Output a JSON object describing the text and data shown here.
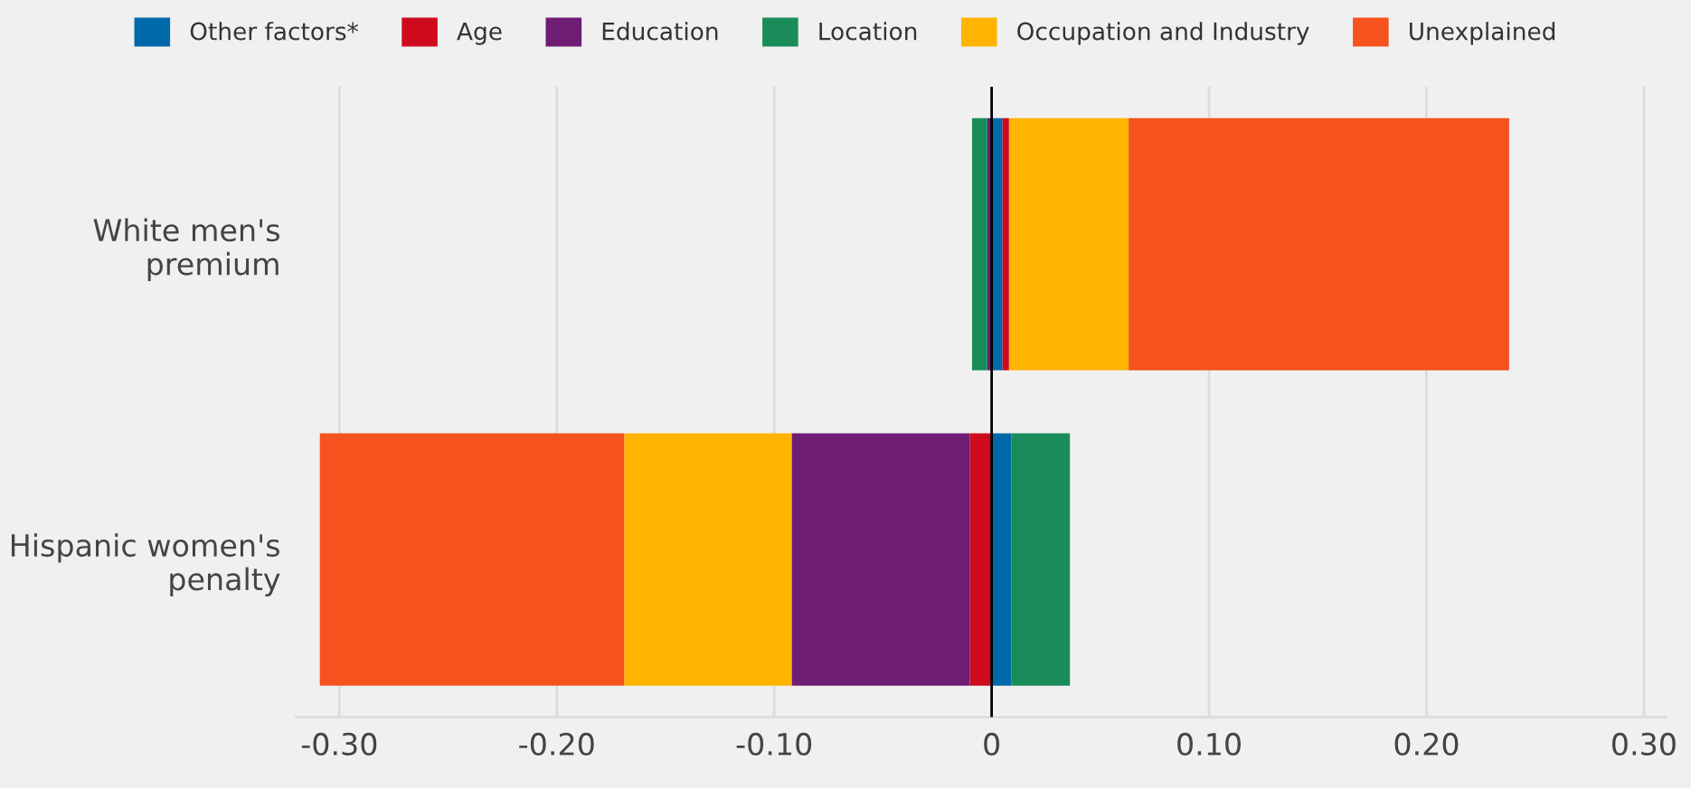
{
  "chart_data": {
    "type": "bar",
    "orientation": "horizontal",
    "stacked": true,
    "categories": [
      "White men's\npremium",
      "Hispanic women's\npenalty"
    ],
    "series": [
      {
        "name": "Other factors*",
        "color": "#0069aa",
        "values": [
          0.005,
          0.009
        ]
      },
      {
        "name": "Age",
        "color": "#cf0a1d",
        "values": [
          0.003,
          -0.01
        ]
      },
      {
        "name": "Education",
        "color": "#6e1c74",
        "values": [
          -0.002,
          -0.082
        ]
      },
      {
        "name": "Location",
        "color": "#198c5a",
        "values": [
          -0.007,
          0.027
        ]
      },
      {
        "name": "Occupation and Industry",
        "color": "#ffb400",
        "values": [
          0.055,
          -0.077
        ]
      },
      {
        "name": "Unexplained",
        "color": "#f5521e",
        "values": [
          0.175,
          -0.14
        ]
      }
    ],
    "xlim": [
      -0.32,
      0.31
    ],
    "xticks": [
      {
        "value": -0.3,
        "label": "-0.30"
      },
      {
        "value": -0.2,
        "label": "-0.20"
      },
      {
        "value": -0.1,
        "label": "-0.10"
      },
      0,
      {
        "value": 0.1,
        "label": "0.10"
      },
      {
        "value": 0.2,
        "label": "0.20"
      },
      {
        "value": 0.3,
        "label": "0.30"
      }
    ],
    "grid": "x",
    "legend": "top",
    "ref_lines": [
      {
        "axis": "x",
        "value": 0,
        "color": "#000000"
      }
    ]
  }
}
